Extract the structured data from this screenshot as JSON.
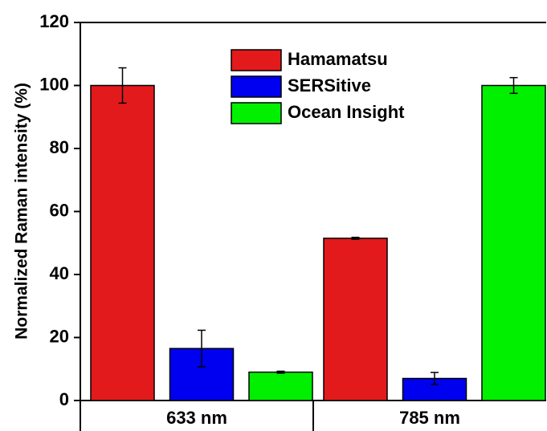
{
  "chart_data": {
    "type": "bar",
    "y_label": "Normalized Raman intensity (%)",
    "categories": [
      "633 nm",
      "785 nm"
    ],
    "series": [
      {
        "name": "Hamamatsu",
        "color": "#e31a1c",
        "values": [
          100,
          51.5
        ],
        "errors": [
          5.6,
          0.3
        ]
      },
      {
        "name": "SERSitive",
        "color": "#0000f0",
        "values": [
          16.5,
          7
        ],
        "errors": [
          5.8,
          1.9
        ]
      },
      {
        "name": "Ocean Insight",
        "color": "#00f000",
        "values": [
          9,
          100
        ],
        "errors": [
          0.3,
          2.5
        ]
      }
    ],
    "ylim": [
      0,
      120
    ],
    "yticks": [
      0,
      20,
      40,
      60,
      80,
      100,
      120
    ],
    "error_bars": true,
    "legend": "top-center"
  }
}
